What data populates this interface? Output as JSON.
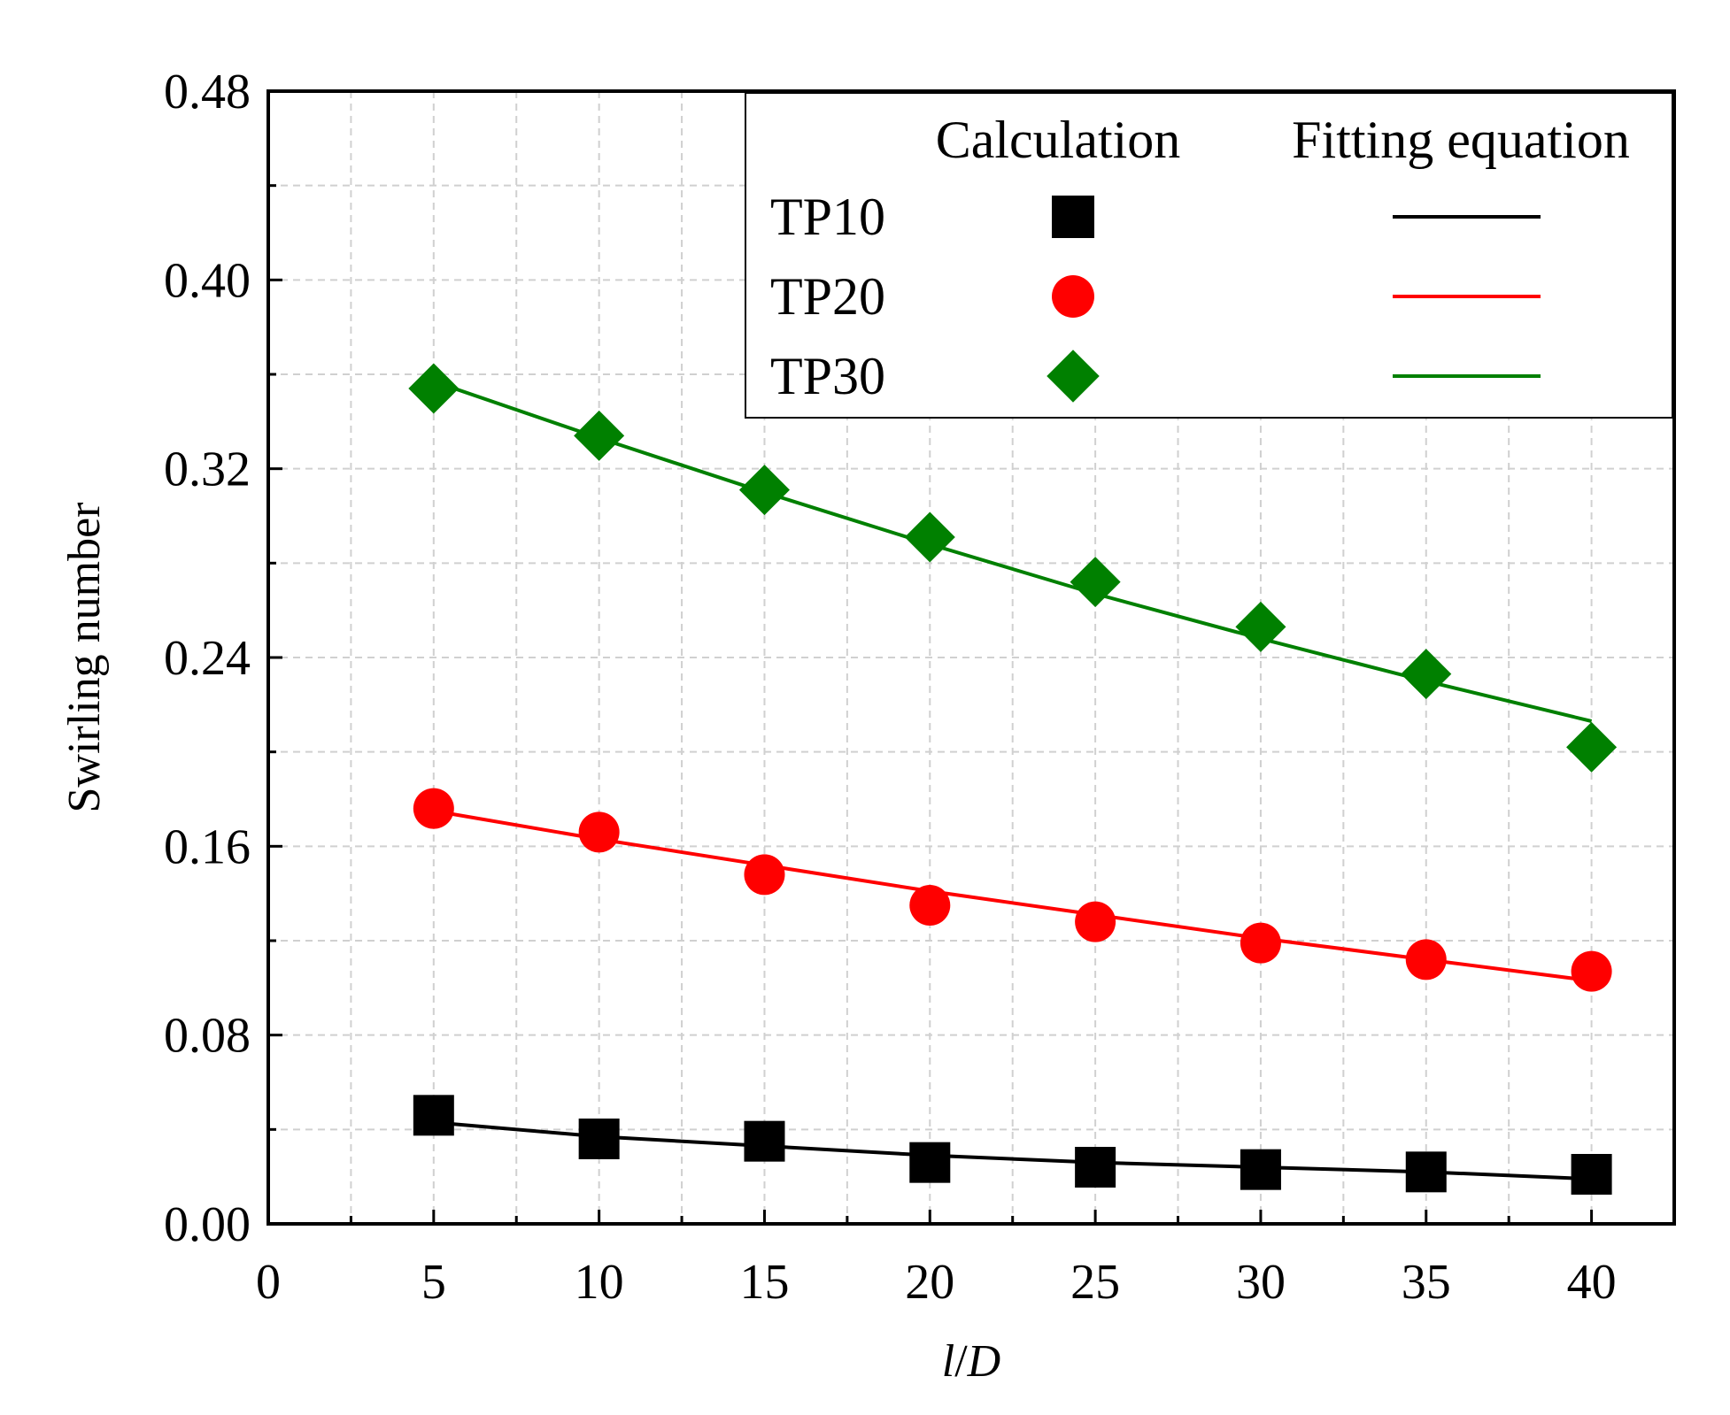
{
  "chart_data": {
    "type": "line",
    "xlabel_italic_1": "l",
    "xlabel_rest": "/",
    "xlabel_italic_2": "D",
    "ylabel": "Swirling number",
    "xlim": [
      0,
      42.5
    ],
    "ylim": [
      0,
      0.48
    ],
    "xticks": [
      0,
      5,
      10,
      15,
      20,
      25,
      30,
      35,
      40
    ],
    "xtick_labels": [
      "0",
      "5",
      "10",
      "15",
      "20",
      "25",
      "30",
      "35",
      "40"
    ],
    "yticks": [
      0.0,
      0.08,
      0.16,
      0.24,
      0.32,
      0.4,
      0.48
    ],
    "ytick_labels": [
      "0.00",
      "0.08",
      "0.16",
      "0.24",
      "0.32",
      "0.40",
      "0.48"
    ],
    "grid": true,
    "legend": {
      "placement": "top-right",
      "header_calc": "Calculation",
      "header_fit": "Fitting equation"
    },
    "series": [
      {
        "name": "TP10",
        "color": "#000000",
        "marker": "square",
        "x": [
          5,
          10,
          15,
          20,
          25,
          30,
          35,
          40
        ],
        "calc": [
          0.046,
          0.036,
          0.035,
          0.026,
          0.024,
          0.023,
          0.022,
          0.021
        ],
        "fit": [
          0.043,
          0.037,
          0.033,
          0.029,
          0.026,
          0.024,
          0.022,
          0.019
        ]
      },
      {
        "name": "TP20",
        "color": "#ff0000",
        "marker": "circle",
        "x": [
          5,
          10,
          15,
          20,
          25,
          30,
          35,
          40
        ],
        "calc": [
          0.176,
          0.166,
          0.148,
          0.135,
          0.128,
          0.119,
          0.112,
          0.107
        ],
        "fit": [
          0.175,
          0.163,
          0.152,
          0.141,
          0.131,
          0.121,
          0.112,
          0.103
        ]
      },
      {
        "name": "TP30",
        "color": "#008000",
        "marker": "diamond",
        "x": [
          5,
          10,
          15,
          20,
          25,
          30,
          35,
          40
        ],
        "calc": [
          0.354,
          0.334,
          0.311,
          0.291,
          0.272,
          0.253,
          0.233,
          0.202
        ],
        "fit": [
          0.357,
          0.333,
          0.31,
          0.288,
          0.267,
          0.248,
          0.23,
          0.213
        ]
      }
    ]
  }
}
